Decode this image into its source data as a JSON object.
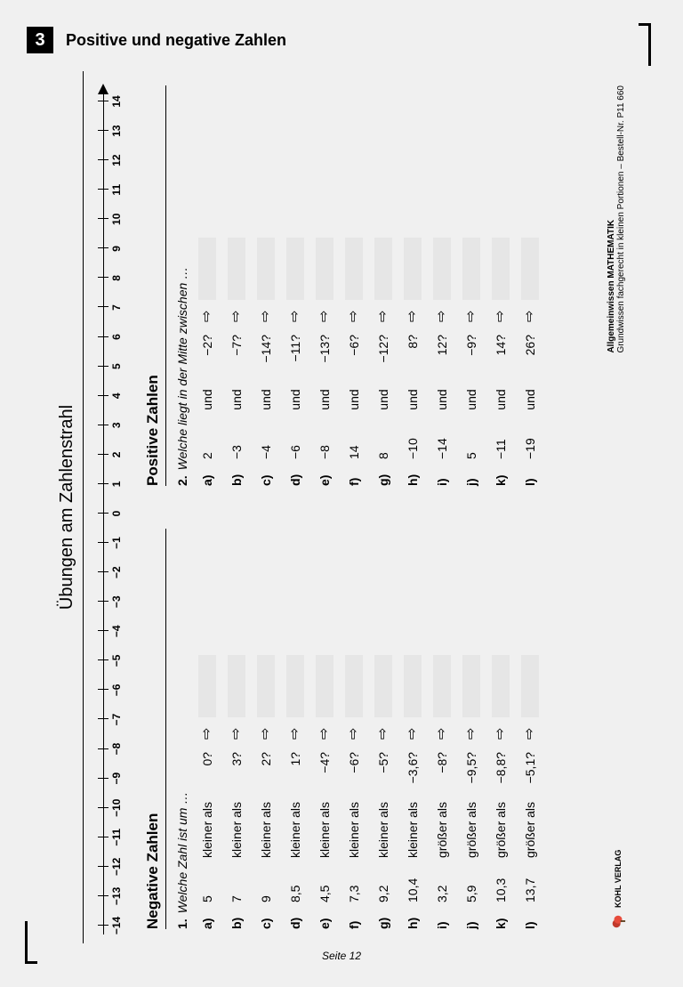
{
  "chapter": {
    "number": "3",
    "title": "Positive und negative Zahlen"
  },
  "sheet": {
    "title": "Übungen am Zahlenstrahl",
    "numberline": {
      "min": -14,
      "max": 14,
      "step": 1
    },
    "col1": {
      "heading": "Negative Zahlen",
      "promptNum": "1.",
      "prompt": "Welche Zahl ist um …",
      "rows": [
        {
          "lbl": "a)",
          "v1": "5",
          "rel": "kleiner als",
          "v2": "0?"
        },
        {
          "lbl": "b)",
          "v1": "7",
          "rel": "kleiner als",
          "v2": "3?"
        },
        {
          "lbl": "c)",
          "v1": "9",
          "rel": "kleiner als",
          "v2": "2?"
        },
        {
          "lbl": "d)",
          "v1": "8,5",
          "rel": "kleiner als",
          "v2": "1?"
        },
        {
          "lbl": "e)",
          "v1": "4,5",
          "rel": "kleiner als",
          "v2": "−4?"
        },
        {
          "lbl": "f)",
          "v1": "7,3",
          "rel": "kleiner als",
          "v2": "−6?"
        },
        {
          "lbl": "g)",
          "v1": "9,2",
          "rel": "kleiner als",
          "v2": "−5?"
        },
        {
          "lbl": "h)",
          "v1": "10,4",
          "rel": "kleiner als",
          "v2": "−3,6?"
        },
        {
          "lbl": "i)",
          "v1": "3,2",
          "rel": "größer als",
          "v2": "−8?"
        },
        {
          "lbl": "j)",
          "v1": "5,9",
          "rel": "größer als",
          "v2": "−9,5?"
        },
        {
          "lbl": "k)",
          "v1": "10,3",
          "rel": "größer als",
          "v2": "−8,8?"
        },
        {
          "lbl": "l)",
          "v1": "13,7",
          "rel": "größer als",
          "v2": "−5,1?"
        }
      ]
    },
    "col2": {
      "heading": "Positive Zahlen",
      "promptNum": "2.",
      "prompt": "Welche liegt in der Mitte zwischen …",
      "und": "und",
      "rows": [
        {
          "lbl": "a)",
          "v1": "2",
          "v2": "−2?"
        },
        {
          "lbl": "b)",
          "v1": "−3",
          "v2": "−7?"
        },
        {
          "lbl": "c)",
          "v1": "−4",
          "v2": "−14?"
        },
        {
          "lbl": "d)",
          "v1": "−6",
          "v2": "−11?"
        },
        {
          "lbl": "e)",
          "v1": "−8",
          "v2": "−13?"
        },
        {
          "lbl": "f)",
          "v1": "14",
          "v2": "−6?"
        },
        {
          "lbl": "g)",
          "v1": "8",
          "v2": "−12?"
        },
        {
          "lbl": "h)",
          "v1": "−10",
          "v2": "8?"
        },
        {
          "lbl": "i)",
          "v1": "−14",
          "v2": "12?"
        },
        {
          "lbl": "j)",
          "v1": "5",
          "v2": "−9?"
        },
        {
          "lbl": "k)",
          "v1": "−11",
          "v2": "14?"
        },
        {
          "lbl": "l)",
          "v1": "−19",
          "v2": "26?"
        }
      ]
    }
  },
  "meta": {
    "line1": "Allgemeinwissen  MATHEMATIK",
    "line2": "Grundwissen fachgerecht in kleinen Portionen   –   Bestell-Nr. P11 660",
    "publisher": "KOHL VERLAG"
  },
  "footer": "Seite 12"
}
